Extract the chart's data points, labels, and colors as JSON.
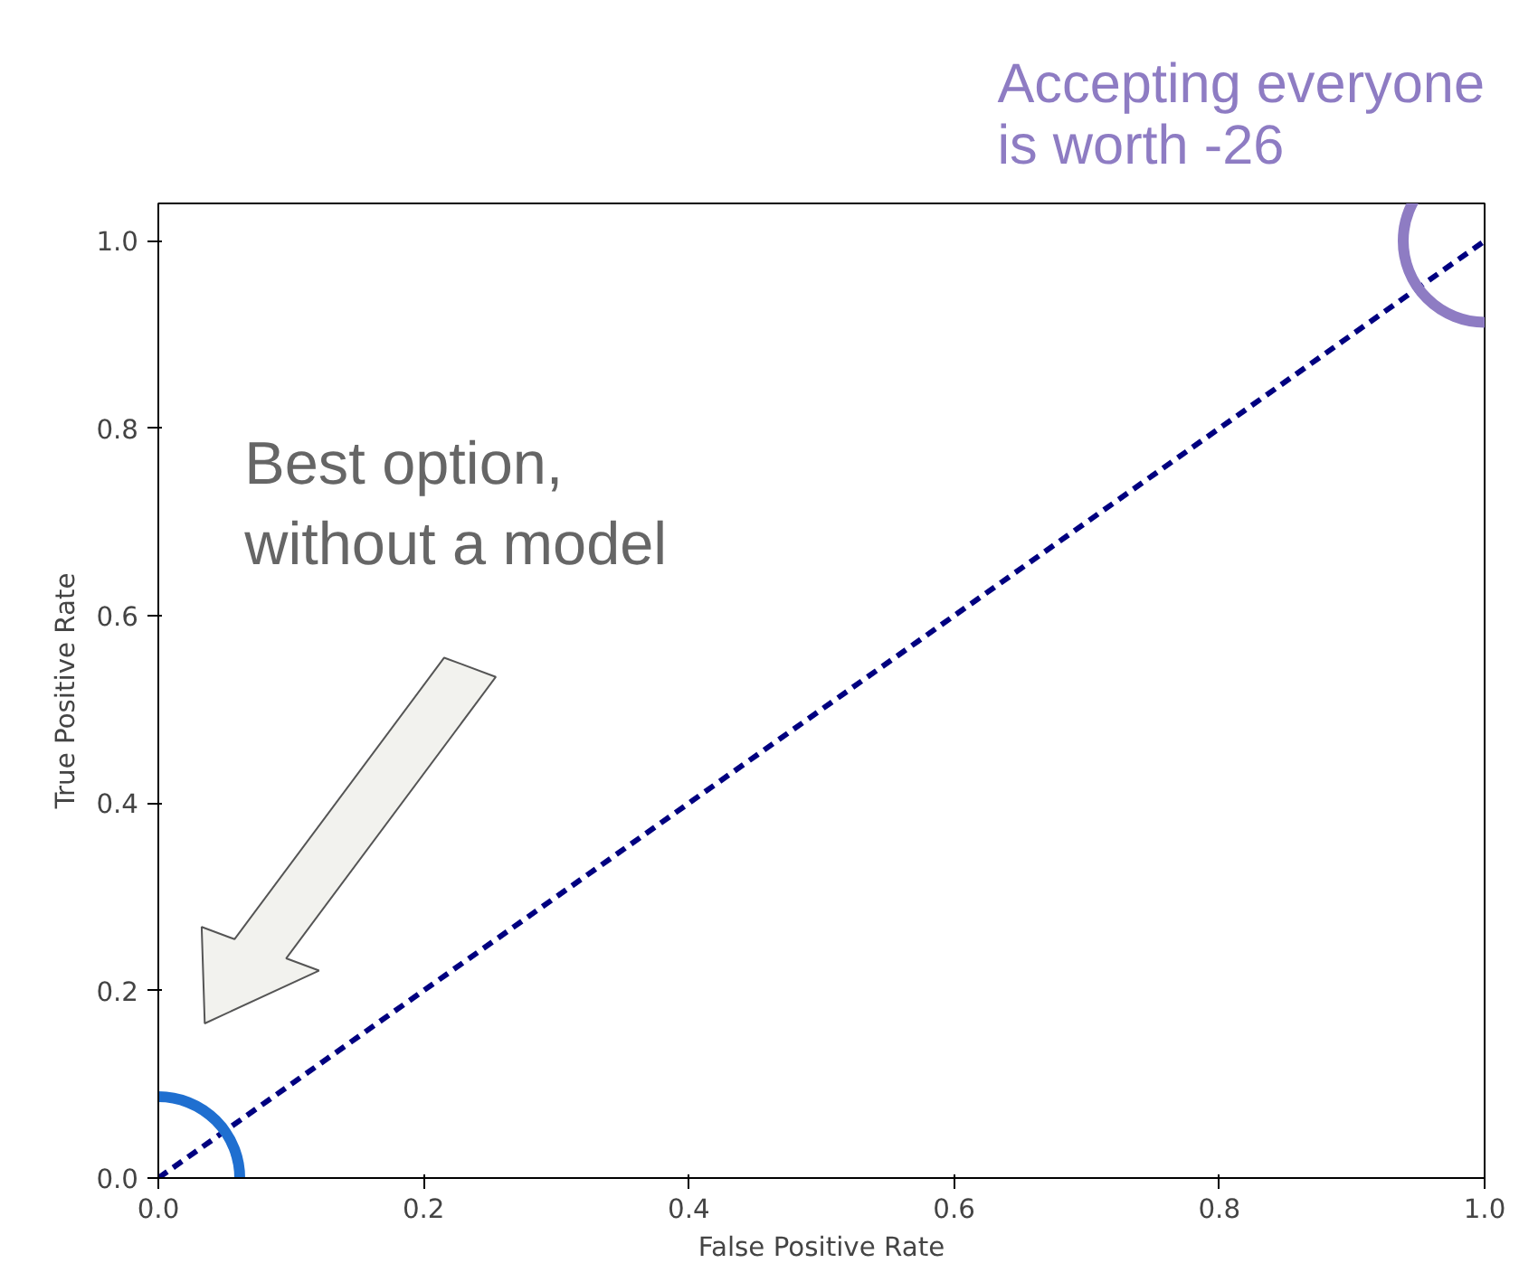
{
  "chart_data": {
    "type": "line",
    "xlabel": "False Positive Rate",
    "ylabel": "True Positive Rate",
    "x": [
      0,
      1
    ],
    "series": [
      {
        "color": "#000080",
        "values": [
          0,
          1
        ],
        "line_style": "dashed"
      }
    ],
    "xlim": [
      0,
      1
    ],
    "ylim": [
      0,
      1.04
    ],
    "xticks": [
      {
        "value": 0,
        "label": "0.0"
      },
      {
        "value": 0.2,
        "label": "0.2"
      },
      {
        "value": 0.4,
        "label": "0.4"
      },
      {
        "value": 0.6,
        "label": "0.6"
      },
      {
        "value": 0.8,
        "label": "0.8"
      },
      {
        "value": 1,
        "label": "1.0"
      }
    ],
    "yticks": [
      {
        "value": 0,
        "label": "0.0"
      },
      {
        "value": 0.2,
        "label": "0.2"
      },
      {
        "value": 0.4,
        "label": "0.4"
      },
      {
        "value": 0.6,
        "label": "0.6"
      },
      {
        "value": 0.8,
        "label": "0.8"
      },
      {
        "value": 1,
        "label": "1.0"
      }
    ],
    "marker": "none",
    "grid": false,
    "annotations": [
      "Best option,\nwithout a model",
      "Accepting everyone\nis worth -26"
    ]
  }
}
